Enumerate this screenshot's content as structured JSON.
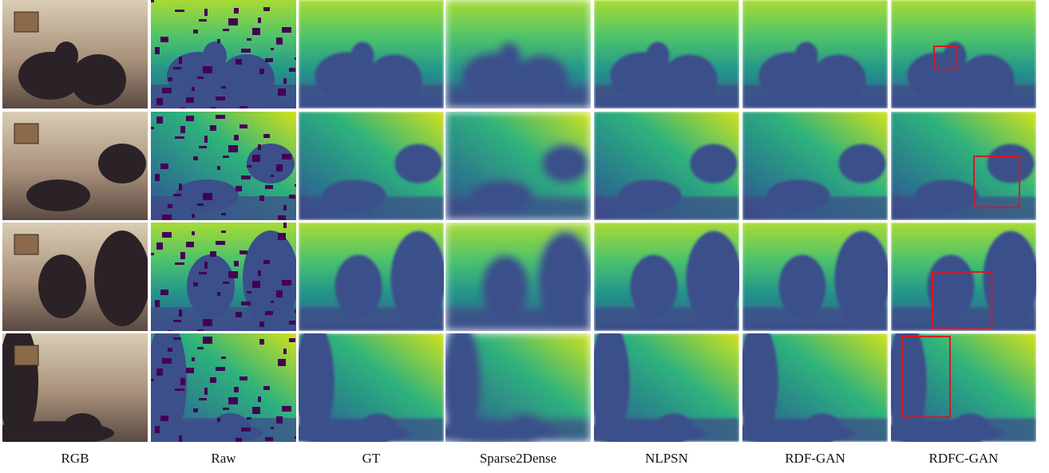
{
  "columns": [
    "RGB",
    "Raw",
    "GT",
    "Sparse2Dense",
    "NLPSN",
    "RDF-GAN",
    "RDFC-GAN"
  ]
}
